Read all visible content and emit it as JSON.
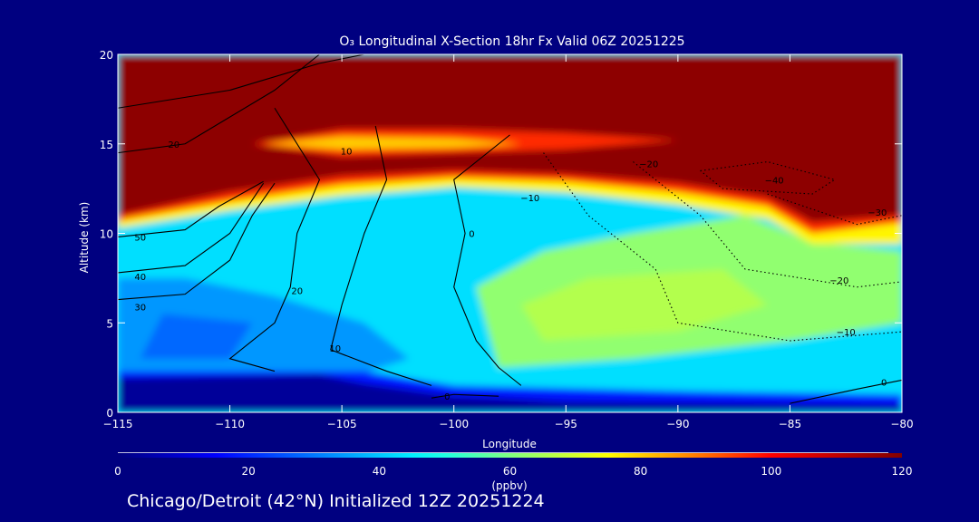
{
  "chart_data": {
    "type": "heatmap",
    "title": "O₃ Longitudinal X-Section 18hr  Fx Valid 06Z 20251225",
    "xlabel": "Longitude",
    "ylabel": "Altitude (km)",
    "xlim": [
      -115,
      -80
    ],
    "ylim": [
      0,
      20
    ],
    "xticks": [
      -115,
      -110,
      -105,
      -100,
      -95,
      -90,
      -85,
      -80
    ],
    "xtick_labels": [
      "−115",
      "−110",
      "−105",
      "−100",
      "−95",
      "−90",
      "−85",
      "−80"
    ],
    "yticks": [
      0,
      5,
      10,
      15,
      20
    ],
    "ytick_labels": [
      "0",
      "5",
      "10",
      "15",
      "20"
    ],
    "colorbar": {
      "label": "(ppbv)",
      "range": [
        0,
        120
      ],
      "ticks": [
        0,
        20,
        40,
        60,
        80,
        100,
        120
      ],
      "tick_labels": [
        "0",
        "20",
        "40",
        "60",
        "80",
        "100",
        "120"
      ]
    },
    "background_value": 43,
    "regions": [
      {
        "value": 62,
        "points": [
          [
            -98,
            2.5
          ],
          [
            -92,
            3
          ],
          [
            -85,
            4
          ],
          [
            -80,
            5
          ],
          [
            -80,
            9
          ],
          [
            -84,
            9.5
          ],
          [
            -87,
            11
          ],
          [
            -92,
            10
          ],
          [
            -96,
            9
          ],
          [
            -99,
            7
          ]
        ]
      },
      {
        "value": 66,
        "points": [
          [
            -96,
            4
          ],
          [
            -90,
            4.5
          ],
          [
            -86,
            6
          ],
          [
            -88,
            8
          ],
          [
            -94,
            7.5
          ],
          [
            -97,
            6
          ]
        ]
      },
      {
        "value": 34,
        "points": [
          [
            -115,
            1.8
          ],
          [
            -108,
            2
          ],
          [
            -104,
            2.2
          ],
          [
            -102,
            3
          ],
          [
            -104,
            5
          ],
          [
            -108,
            6.5
          ],
          [
            -112,
            7.5
          ],
          [
            -115,
            7.5
          ]
        ]
      },
      {
        "value": 28,
        "points": [
          [
            -114,
            3
          ],
          [
            -110,
            3
          ],
          [
            -109,
            5
          ],
          [
            -113,
            5.5
          ]
        ]
      },
      {
        "value": 18,
        "points": [
          [
            -115,
            0
          ],
          [
            -80,
            0
          ],
          [
            -80,
            1.0
          ],
          [
            -90,
            1.2
          ],
          [
            -100,
            1.5
          ],
          [
            -104,
            2.3
          ],
          [
            -115,
            2.3
          ]
        ]
      },
      {
        "value": 3,
        "points": [
          [
            -115,
            0
          ],
          [
            -115,
            1.9
          ],
          [
            -106,
            2.1
          ],
          [
            -104,
            1.6
          ],
          [
            -100,
            0.9
          ],
          [
            -95,
            0.6
          ],
          [
            -80,
            0.4
          ],
          [
            -80,
            0
          ]
        ]
      },
      {
        "value": 76,
        "points": [
          [
            -115,
            10.3
          ],
          [
            -110,
            11.3
          ],
          [
            -105,
            12.1
          ],
          [
            -100,
            12.6
          ],
          [
            -95,
            12.3
          ],
          [
            -90,
            11.6
          ],
          [
            -86,
            10.8
          ],
          [
            -84,
            9.4
          ],
          [
            -80,
            9.4
          ],
          [
            -80,
            20
          ],
          [
            -115,
            20
          ]
        ]
      },
      {
        "value": 96,
        "points": [
          [
            -115,
            10.7
          ],
          [
            -110,
            11.8
          ],
          [
            -105,
            12.7
          ],
          [
            -100,
            13.1
          ],
          [
            -95,
            12.9
          ],
          [
            -90,
            12.3
          ],
          [
            -86,
            11.5
          ],
          [
            -84,
            10
          ],
          [
            -80,
            10.6
          ],
          [
            -80,
            20
          ],
          [
            -115,
            20
          ]
        ]
      },
      {
        "value": 118,
        "points": [
          [
            -115,
            11
          ],
          [
            -110,
            12.3
          ],
          [
            -105,
            13.2
          ],
          [
            -100,
            13.5
          ],
          [
            -95,
            13.3
          ],
          [
            -90,
            12.8
          ],
          [
            -86,
            12
          ],
          [
            -84,
            10.6
          ],
          [
            -80,
            11
          ],
          [
            -80,
            20
          ],
          [
            -115,
            20
          ]
        ]
      },
      {
        "value": 96,
        "points": [
          [
            -109,
            15
          ],
          [
            -105,
            15.8
          ],
          [
            -100,
            15.8
          ],
          [
            -95,
            15.6
          ],
          [
            -90,
            15.2
          ],
          [
            -95,
            14.7
          ],
          [
            -100,
            14.5
          ],
          [
            -105,
            14.3
          ]
        ]
      },
      {
        "value": 80,
        "points": [
          [
            -108.5,
            15
          ],
          [
            -105,
            15.4
          ],
          [
            -100,
            15.3
          ],
          [
            -97,
            15
          ],
          [
            -100,
            14.8
          ],
          [
            -105,
            14.7
          ]
        ]
      }
    ],
    "contours": [
      {
        "level": 0,
        "points": [
          [
            -97.5,
            15.5
          ],
          [
            -100,
            13
          ],
          [
            -99.5,
            10
          ],
          [
            -100,
            7
          ],
          [
            -99,
            4
          ],
          [
            -98,
            2.5
          ],
          [
            -97,
            1.5
          ]
        ]
      },
      {
        "level": 0,
        "points": [
          [
            -101,
            0.8
          ],
          [
            -100,
            1.0
          ],
          [
            -98,
            0.9
          ]
        ]
      },
      {
        "level": 0,
        "points": [
          [
            -85,
            0.5
          ],
          [
            -82,
            1.3
          ],
          [
            -80,
            1.8
          ]
        ]
      },
      {
        "level": 10,
        "points": [
          [
            -103.5,
            16
          ],
          [
            -103,
            13
          ],
          [
            -104,
            10
          ],
          [
            -105,
            6
          ],
          [
            -105.5,
            3.5
          ],
          [
            -103,
            2.3
          ],
          [
            -101,
            1.5
          ]
        ]
      },
      {
        "level": 20,
        "points": [
          [
            -108,
            17
          ],
          [
            -106,
            13
          ],
          [
            -107,
            10
          ],
          [
            -107.3,
            7
          ],
          [
            -108,
            5
          ],
          [
            -110,
            3
          ],
          [
            -108,
            2.3
          ]
        ]
      },
      {
        "level": 30,
        "points": [
          [
            -115,
            6.3
          ],
          [
            -112,
            6.6
          ],
          [
            -110,
            8.5
          ],
          [
            -109,
            11
          ],
          [
            -108,
            12.8
          ]
        ]
      },
      {
        "level": 40,
        "points": [
          [
            -115,
            7.8
          ],
          [
            -112,
            8.2
          ],
          [
            -110,
            10
          ],
          [
            -108.5,
            12.8
          ]
        ]
      },
      {
        "level": 50,
        "points": [
          [
            -115,
            9.8
          ],
          [
            -112,
            10.2
          ],
          [
            -110.5,
            11.5
          ],
          [
            -108.5,
            12.9
          ]
        ]
      },
      {
        "level": 20,
        "points": [
          [
            -115,
            14.5
          ],
          [
            -112,
            15
          ],
          [
            -110,
            16.5
          ],
          [
            -108,
            18
          ],
          [
            -106,
            20
          ]
        ]
      },
      {
        "level": 10,
        "points": [
          [
            -115,
            17
          ],
          [
            -110,
            18
          ],
          [
            -106,
            19.5
          ],
          [
            -104,
            20
          ]
        ]
      },
      {
        "level": -10,
        "points": [
          [
            -96,
            14.5
          ],
          [
            -94,
            11
          ],
          [
            -91,
            8
          ],
          [
            -90,
            5
          ],
          [
            -85,
            4
          ],
          [
            -80,
            4.5
          ]
        ]
      },
      {
        "level": -20,
        "points": [
          [
            -92,
            14
          ],
          [
            -89,
            11
          ],
          [
            -87,
            8
          ],
          [
            -82,
            7
          ],
          [
            -80,
            7.3
          ]
        ]
      },
      {
        "level": -30,
        "points": [
          [
            -86,
            12.2
          ],
          [
            -82,
            10.5
          ],
          [
            -80,
            11
          ]
        ]
      },
      {
        "level": -40,
        "points": [
          [
            -89,
            13.5
          ],
          [
            -86,
            14
          ],
          [
            -83,
            13
          ],
          [
            -84,
            12.2
          ],
          [
            -88,
            12.5
          ],
          [
            -89,
            13.5
          ]
        ]
      }
    ],
    "contour_labels": [
      {
        "text": "0",
        "x": -99.2,
        "y": 10
      },
      {
        "text": "0",
        "x": -100.3,
        "y": 0.9
      },
      {
        "text": "0",
        "x": -80.8,
        "y": 1.7
      },
      {
        "text": "10",
        "x": -105.3,
        "y": 3.6
      },
      {
        "text": "10",
        "x": -104.8,
        "y": 14.6
      },
      {
        "text": "20",
        "x": -107,
        "y": 6.8
      },
      {
        "text": "20",
        "x": -112.5,
        "y": 15
      },
      {
        "text": "30",
        "x": -114,
        "y": 5.9
      },
      {
        "text": "40",
        "x": -114,
        "y": 7.6
      },
      {
        "text": "50",
        "x": -114,
        "y": 9.8
      },
      {
        "text": "−10",
        "x": -96.6,
        "y": 12
      },
      {
        "text": "−10",
        "x": -82.5,
        "y": 4.5
      },
      {
        "text": "−20",
        "x": -91.3,
        "y": 13.9
      },
      {
        "text": "−20",
        "x": -82.8,
        "y": 7.4
      },
      {
        "text": "−30",
        "x": -81.1,
        "y": 11.2
      },
      {
        "text": "−40",
        "x": -85.7,
        "y": 13
      }
    ]
  },
  "footer": {
    "location_text": "Chicago/Detroit (42°N) Initialized 12Z 20251224"
  },
  "colors": {
    "background": "#000080",
    "colormap": [
      "#00007f",
      "#0000ff",
      "#00ffff",
      "#80ff80",
      "#ffff00",
      "#ff8000",
      "#ff0000",
      "#800000"
    ]
  }
}
